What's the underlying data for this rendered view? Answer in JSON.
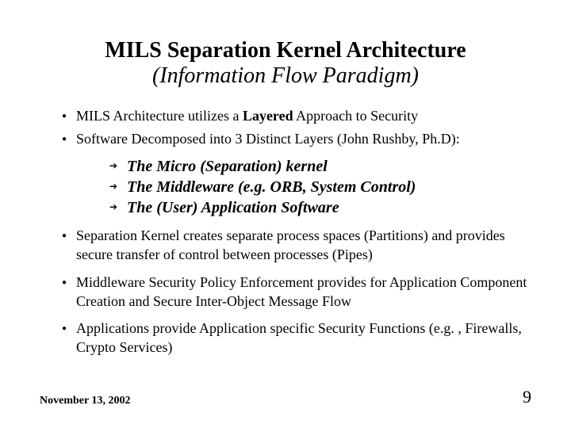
{
  "title": {
    "line1": "MILS Separation Kernel Architecture",
    "line2": "(Information Flow Paradigm)"
  },
  "bullets": {
    "b1_pre": "MILS Architecture utilizes a ",
    "b1_strong": "Layered",
    "b1_post": " Approach to Security",
    "b2": "Software Decomposed into 3 Distinct Layers (John Rushby, Ph.D):",
    "sub1": "The Micro (Separation) kernel",
    "sub2": "The Middleware (e.g. ORB, System Control)",
    "sub3": "The (User) Application Software",
    "b3": "Separation Kernel creates separate process spaces (Partitions) and provides secure transfer of control between processes (Pipes)",
    "b4": "Middleware Security Policy Enforcement provides for Application Component Creation and Secure Inter-Object Message Flow",
    "b5": "Applications provide Application specific Security Functions (e.g. , Firewalls, Crypto Services)"
  },
  "footer": {
    "date": "November 13, 2002",
    "page": "9"
  },
  "style": {
    "background_color": "#ffffff",
    "text_color": "#000000",
    "title_fontsize": 28,
    "body_fontsize": 18,
    "sub_fontsize": 20,
    "footer_date_fontsize": 14,
    "footer_page_fontsize": 22,
    "font_family": "Times New Roman",
    "bullet_marker": "●",
    "sub_marker": "➔"
  }
}
